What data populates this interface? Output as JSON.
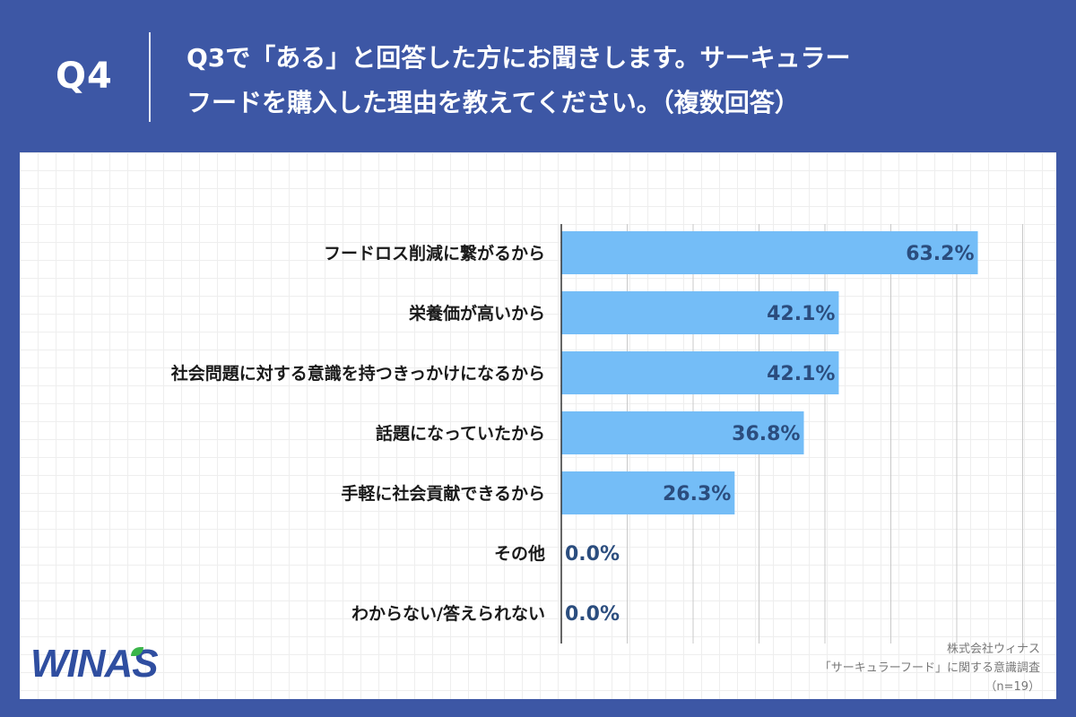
{
  "header": {
    "q_number": "Q4",
    "question_line1": "Q3で「ある」と回答した方にお聞きします。サーキュラー",
    "question_line2": "フードを購入した理由を教えてください。（複数回答）"
  },
  "colors": {
    "header_bg": "#3d57a5",
    "bar": "#74bdf7",
    "value_text": "#2b4d7e"
  },
  "chart_data": {
    "type": "bar",
    "orientation": "horizontal",
    "categories": [
      "フードロス削減に繋がるから",
      "栄養価が高いから",
      "社会問題に対する意識を持つきっかけになるから",
      "話題になっていたから",
      "手軽に社会貢献できるから",
      "その他",
      "わからない/答えられない"
    ],
    "values": [
      63.2,
      42.1,
      42.1,
      36.8,
      26.3,
      0.0,
      0.0
    ],
    "value_labels": [
      "63.2%",
      "42.1%",
      "42.1%",
      "36.8%",
      "26.3%",
      "0.0%",
      "0.0%"
    ],
    "xlim": [
      0,
      70
    ],
    "gridlines_every": 10
  },
  "footer": {
    "logo_text": "WINAS",
    "source_line1": "株式会社ウィナス",
    "source_line2": "「サーキュラーフード」に関する意識調査",
    "source_line3": "（n=19）"
  }
}
